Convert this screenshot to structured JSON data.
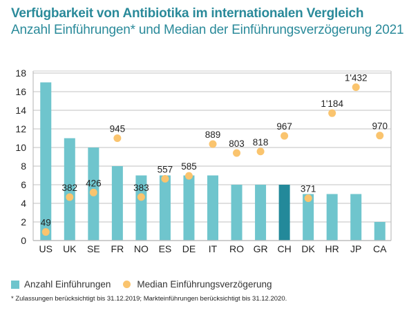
{
  "header": {
    "title": "Verfügbarkeit von Antibiotika im internationalen Vergleich",
    "subtitle": "Anzahl Einführungen* und Median der Einführungsverzögerung 2021"
  },
  "legend": {
    "bars_label": "Anzahl Einführungen",
    "dots_label": "Median Einführungsverzögerung"
  },
  "footnote": "* Zulassungen berücksichtigt bis 31.12.2019; Markteinführungen berücksichtigt bis 31.12.2020.",
  "chart_data": {
    "type": "bar",
    "title": "Verfügbarkeit von Antibiotika im internationalen Vergleich",
    "subtitle": "Anzahl Einführungen* und Median der Einführungsverzögerung 2021",
    "xlabel": "",
    "ylabel": "",
    "ylim": [
      0,
      18
    ],
    "yticks": [
      0,
      2,
      4,
      6,
      8,
      10,
      12,
      14,
      16,
      18
    ],
    "grid": true,
    "legend_position": "bottom-left",
    "categories": [
      "US",
      "UK",
      "SE",
      "FR",
      "NO",
      "ES",
      "DE",
      "IT",
      "RO",
      "GR",
      "CH",
      "DK",
      "HR",
      "JP",
      "CA"
    ],
    "highlight_category": "CH",
    "colors": {
      "bar": "#6fc5cd",
      "bar_highlight": "#23899a",
      "dot": "#fac46e",
      "title": "#2a8a9a"
    },
    "series": [
      {
        "name": "Anzahl Einführungen",
        "type": "bar",
        "axis": "left",
        "values": [
          17,
          11,
          10,
          8,
          7,
          7,
          7,
          7,
          6,
          6,
          6,
          5,
          5,
          5,
          2
        ]
      },
      {
        "name": "Median Einführungsverzögerung",
        "type": "scatter",
        "axis": "secondary-hidden",
        "secondary_ylim": [
          0,
          1600
        ],
        "values": [
          49,
          382,
          426,
          945,
          383,
          557,
          585,
          889,
          803,
          818,
          967,
          371,
          1184,
          1432,
          970
        ],
        "labels": [
          "49",
          "382",
          "426",
          "945",
          "383",
          "557",
          "585",
          "889",
          "803",
          "818",
          "967",
          "371",
          "1'184",
          "1'432",
          "970"
        ]
      }
    ]
  }
}
